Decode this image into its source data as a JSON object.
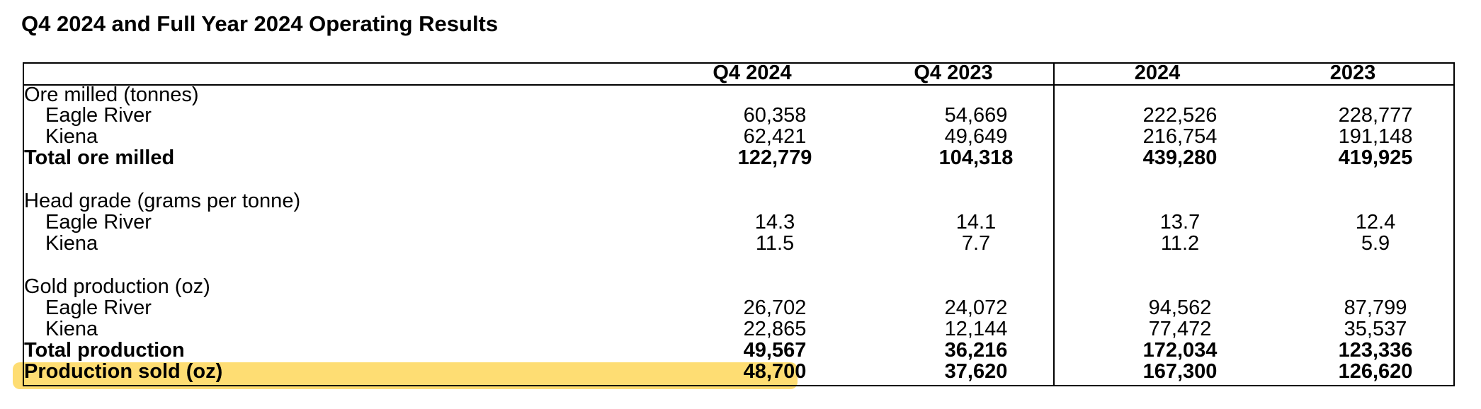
{
  "title": "Q4 2024 and Full Year 2024 Operating Results",
  "columns": [
    "Q4 2024",
    "Q4 2023",
    "2024",
    "2023"
  ],
  "sections": {
    "ore": {
      "heading": "Ore milled (tonnes)",
      "eagle": {
        "label": "Eagle River",
        "values": [
          "60,358",
          "54,669",
          "222,526",
          "228,777"
        ]
      },
      "kiena": {
        "label": "Kiena",
        "values": [
          "62,421",
          "49,649",
          "216,754",
          "191,148"
        ]
      },
      "total": {
        "label": "Total ore milled",
        "values": [
          "122,779",
          "104,318",
          "439,280",
          "419,925"
        ]
      }
    },
    "grade": {
      "heading": "Head grade (grams per tonne)",
      "eagle": {
        "label": "Eagle River",
        "values": [
          "14.3",
          "14.1",
          "13.7",
          "12.4"
        ]
      },
      "kiena": {
        "label": "Kiena",
        "values": [
          "11.5",
          "7.7",
          "11.2",
          "5.9"
        ]
      }
    },
    "gold": {
      "heading": "Gold production (oz)",
      "eagle": {
        "label": "Eagle River",
        "values": [
          "26,702",
          "24,072",
          "94,562",
          "87,799"
        ]
      },
      "kiena": {
        "label": "Kiena",
        "values": [
          "22,865",
          "12,144",
          "77,472",
          "35,537"
        ]
      },
      "total": {
        "label": "Total production",
        "values": [
          "49,567",
          "36,216",
          "172,034",
          "123,336"
        ]
      },
      "sold": {
        "label": "Production sold (oz)",
        "values": [
          "48,700",
          "37,620",
          "167,300",
          "126,620"
        ]
      }
    }
  },
  "highlight_color": "#fedb6b"
}
